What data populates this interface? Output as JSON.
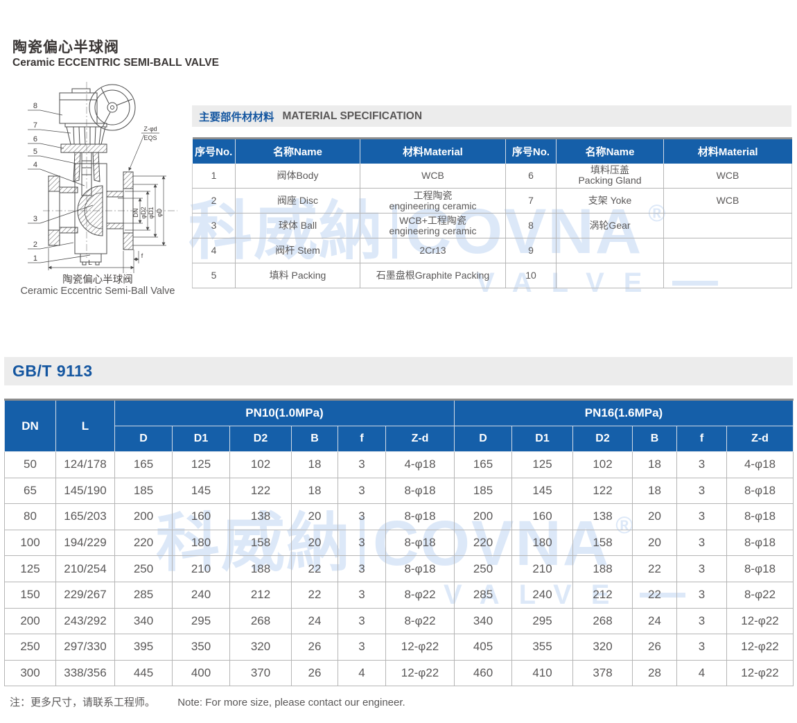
{
  "page": {
    "title_zh": "陶瓷偏心半球阀",
    "title_en": "Ceramic ECCENTRIC SEMI-BALL VALVE",
    "note_zh": "注：更多尺寸，请联系工程师。",
    "note_en": "Note: For more size, please contact our engineer.",
    "accent_blue": "#155fa9",
    "band_gray": "#ececec",
    "text_gray": "#595757",
    "watermark_blue": "#dce8f8"
  },
  "watermark": {
    "brand_zh": "科威納",
    "brand_en": "COVNA",
    "registered": "®",
    "sub": "VALVE"
  },
  "drawing": {
    "caption_zh": "陶瓷偏心半球阀",
    "caption_en": "Ceramic Eccentric Semi-Ball Valve",
    "part_numbers": [
      "8",
      "7",
      "6",
      "5",
      "4",
      "3",
      "2",
      "1"
    ],
    "labels": {
      "zd": "Z-φd",
      "eqs": "EQS",
      "dn": "DN",
      "d2": "φD2",
      "d1": "φD1",
      "d": "φD",
      "f": "f",
      "b": "B",
      "l": "L"
    }
  },
  "material_section": {
    "title_zh": "主要部件材材料",
    "title_en": "MATERIAL SPECIFICATION",
    "col_no": "序号No.",
    "col_name": "名称Name",
    "col_material": "材料Material",
    "rows": [
      {
        "no": "1",
        "name": "阀体Body",
        "material": "WCB",
        "no2": "6",
        "name2": "填料压盖\nPacking Gland",
        "material2": "WCB"
      },
      {
        "no": "2",
        "name": "阀座 Disc",
        "material": "工程陶瓷\nengineering ceramic",
        "no2": "7",
        "name2": "支架 Yoke",
        "material2": "WCB"
      },
      {
        "no": "3",
        "name": "球体 Ball",
        "material": "WCB+工程陶瓷\nengineering ceramic",
        "no2": "8",
        "name2": "涡轮Gear",
        "material2": ""
      },
      {
        "no": "4",
        "name": "阀杆 Stem",
        "material": "2Cr13",
        "no2": "9",
        "name2": "",
        "material2": ""
      },
      {
        "no": "5",
        "name": "填料 Packing",
        "material": "石墨盘根Graphite Packing",
        "no2": "10",
        "name2": "",
        "material2": ""
      }
    ]
  },
  "dim_section": {
    "standard": "GB/T 9113",
    "col_dn": "DN",
    "col_l": "L",
    "pn10": "PN10(1.0MPa)",
    "pn16": "PN16(1.6MPa)",
    "sub_cols": [
      "D",
      "D1",
      "D2",
      "B",
      "f",
      "Z-d"
    ],
    "rows": [
      [
        "50",
        "124/178",
        "165",
        "125",
        "102",
        "18",
        "3",
        "4-φ18",
        "165",
        "125",
        "102",
        "18",
        "3",
        "4-φ18"
      ],
      [
        "65",
        "145/190",
        "185",
        "145",
        "122",
        "18",
        "3",
        "8-φ18",
        "185",
        "145",
        "122",
        "18",
        "3",
        "8-φ18"
      ],
      [
        "80",
        "165/203",
        "200",
        "160",
        "138",
        "20",
        "3",
        "8-φ18",
        "200",
        "160",
        "138",
        "20",
        "3",
        "8-φ18"
      ],
      [
        "100",
        "194/229",
        "220",
        "180",
        "158",
        "20",
        "3",
        "8-φ18",
        "220",
        "180",
        "158",
        "20",
        "3",
        "8-φ18"
      ],
      [
        "125",
        "210/254",
        "250",
        "210",
        "188",
        "22",
        "3",
        "8-φ18",
        "250",
        "210",
        "188",
        "22",
        "3",
        "8-φ18"
      ],
      [
        "150",
        "229/267",
        "285",
        "240",
        "212",
        "22",
        "3",
        "8-φ22",
        "285",
        "240",
        "212",
        "22",
        "3",
        "8-φ22"
      ],
      [
        "200",
        "243/292",
        "340",
        "295",
        "268",
        "24",
        "3",
        "8-φ22",
        "340",
        "295",
        "268",
        "24",
        "3",
        "12-φ22"
      ],
      [
        "250",
        "297/330",
        "395",
        "350",
        "320",
        "26",
        "3",
        "12-φ22",
        "405",
        "355",
        "320",
        "26",
        "3",
        "12-φ22"
      ],
      [
        "300",
        "338/356",
        "445",
        "400",
        "370",
        "26",
        "4",
        "12-φ22",
        "460",
        "410",
        "378",
        "28",
        "4",
        "12-φ22"
      ]
    ]
  }
}
